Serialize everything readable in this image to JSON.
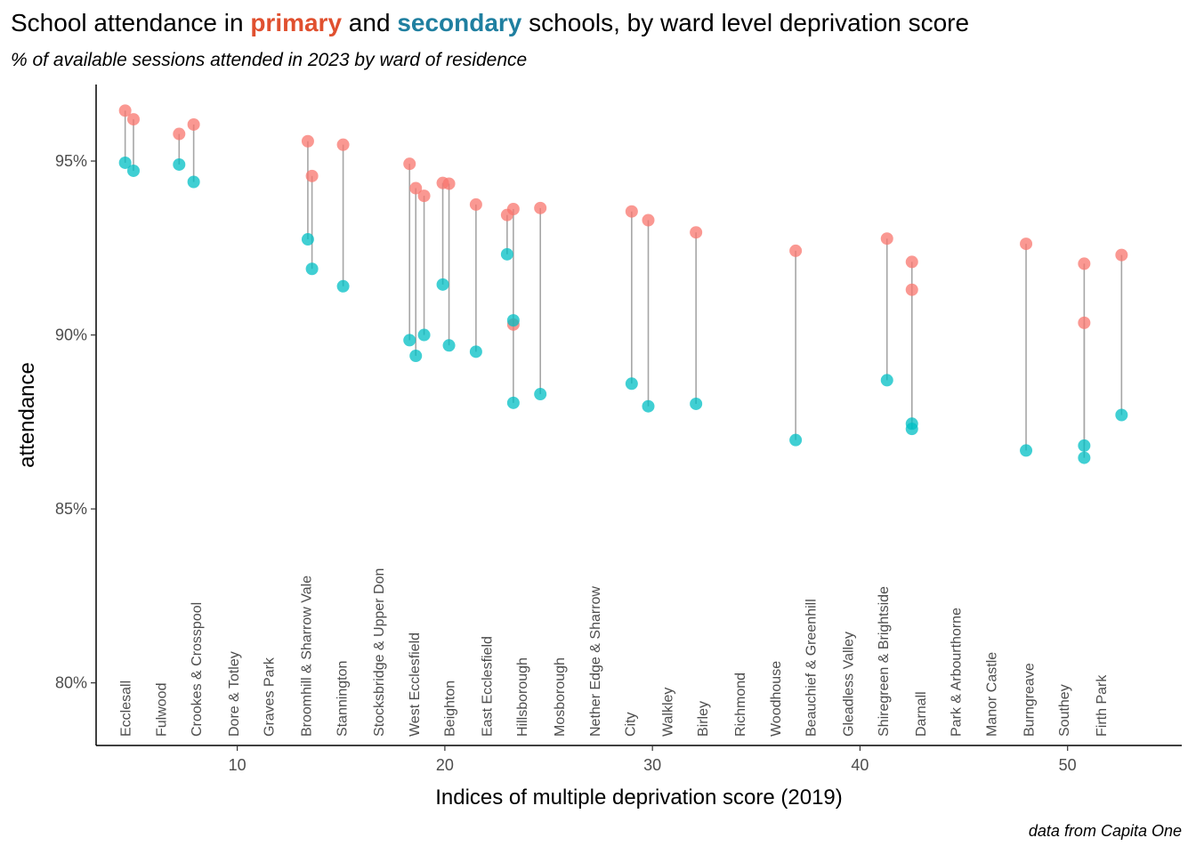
{
  "title": {
    "part1": "School attendance in ",
    "primary": "primary",
    "part2": " and ",
    "secondary": "secondary",
    "part3": " schools, by ward level deprivation score"
  },
  "subtitle": "% of available sessions attended in 2023 by ward of residence",
  "caption": "data from Capita One",
  "colors": {
    "primary": "#F8766D",
    "secondary": "#00BFC4",
    "primary_title": "#E0502F",
    "secondary_title": "#1F7FA0",
    "segment": "#A6A6A6"
  },
  "chart_data": {
    "type": "scatter",
    "xlabel": "Indices of multiple deprivation score (2019)",
    "ylabel": "attendance",
    "xlim": [
      3.2,
      55.5
    ],
    "ylim": [
      78.2,
      97.2
    ],
    "x_ticks": [
      10,
      20,
      30,
      40,
      50
    ],
    "x_tick_labels": [
      "10",
      "20",
      "30",
      "40",
      "50"
    ],
    "y_ticks": [
      80,
      85,
      90,
      95
    ],
    "y_tick_labels": [
      "80%",
      "85%",
      "90%",
      "95%"
    ],
    "grid": false,
    "legend": "none",
    "series": [
      {
        "name": "primary",
        "color": "#F8766D"
      },
      {
        "name": "secondary",
        "color": "#00BFC4"
      }
    ],
    "ward_labels": [
      {
        "name": "Ecclesall",
        "x": 4.6
      },
      {
        "name": "Fulwood",
        "x": 6.3
      },
      {
        "name": "Crookes & Crosspool",
        "x": 8.0
      },
      {
        "name": "Dore & Totley",
        "x": 9.8
      },
      {
        "name": "Graves Park",
        "x": 11.5
      },
      {
        "name": "Broomhill & Sharrow Vale",
        "x": 13.3
      },
      {
        "name": "Stannington",
        "x": 15.0
      },
      {
        "name": "Stocksbridge & Upper Don",
        "x": 16.8
      },
      {
        "name": "West Ecclesfield",
        "x": 18.5
      },
      {
        "name": "Beighton",
        "x": 20.2
      },
      {
        "name": "East Ecclesfield",
        "x": 22.0
      },
      {
        "name": "Hillsborough",
        "x": 23.7
      },
      {
        "name": "Mosborough",
        "x": 25.5
      },
      {
        "name": "Nether Edge & Sharrow",
        "x": 27.2
      },
      {
        "name": "City",
        "x": 28.9
      },
      {
        "name": "Walkley",
        "x": 30.7
      },
      {
        "name": "Birley",
        "x": 32.4
      },
      {
        "name": "Richmond",
        "x": 34.2
      },
      {
        "name": "Woodhouse",
        "x": 35.9
      },
      {
        "name": "Beauchief & Greenhill",
        "x": 37.6
      },
      {
        "name": "Gleadless Valley",
        "x": 39.4
      },
      {
        "name": "Shiregreen & Brightside",
        "x": 41.1
      },
      {
        "name": "Darnall",
        "x": 42.9
      },
      {
        "name": "Park & Arbourthorne",
        "x": 44.6
      },
      {
        "name": "Manor Castle",
        "x": 46.3
      },
      {
        "name": "Burngreave",
        "x": 48.1
      },
      {
        "name": "Southey",
        "x": 49.8
      },
      {
        "name": "Firth Park",
        "x": 51.6
      }
    ],
    "points": [
      {
        "x": 4.6,
        "primary": 96.45,
        "secondary": 94.95
      },
      {
        "x": 5.0,
        "primary": 96.2,
        "secondary": 94.72
      },
      {
        "x": 7.2,
        "primary": 95.78,
        "secondary": 94.9
      },
      {
        "x": 7.9,
        "primary": 96.05,
        "secondary": 94.4
      },
      {
        "x": 13.4,
        "primary": 95.57,
        "secondary": 92.75
      },
      {
        "x": 13.6,
        "primary": 94.57,
        "secondary": 91.9
      },
      {
        "x": 15.1,
        "primary": 95.47,
        "secondary": 91.4
      },
      {
        "x": 18.3,
        "primary": 94.92,
        "secondary": 89.85
      },
      {
        "x": 18.6,
        "primary": 94.22,
        "secondary": 89.4
      },
      {
        "x": 19.0,
        "primary": 94.0,
        "secondary": 90.0
      },
      {
        "x": 19.9,
        "primary": 94.37,
        "secondary": 91.45
      },
      {
        "x": 20.2,
        "primary": 94.35,
        "secondary": 89.7
      },
      {
        "x": 21.5,
        "primary": 93.75,
        "secondary": 89.52
      },
      {
        "x": 23.0,
        "primary": 93.45,
        "secondary": 92.32
      },
      {
        "x": 23.3,
        "primary": 93.62,
        "secondary": 88.05
      },
      {
        "x": 23.3,
        "primary": 90.3,
        "secondary": 90.42
      },
      {
        "x": 24.6,
        "primary": 93.65,
        "secondary": 88.3
      },
      {
        "x": 29.0,
        "primary": 93.55,
        "secondary": 88.6
      },
      {
        "x": 29.8,
        "primary": 93.3,
        "secondary": 87.95
      },
      {
        "x": 32.1,
        "primary": 92.95,
        "secondary": 88.02
      },
      {
        "x": 36.9,
        "primary": 92.42,
        "secondary": 86.98
      },
      {
        "x": 41.3,
        "primary": 92.77,
        "secondary": 88.7
      },
      {
        "x": 42.5,
        "primary": 92.1,
        "secondary": 87.45
      },
      {
        "x": 42.5,
        "primary": 91.3,
        "secondary": 87.3
      },
      {
        "x": 48.0,
        "primary": 92.62,
        "secondary": 86.68
      },
      {
        "x": 50.8,
        "primary": 92.05,
        "secondary": 86.82
      },
      {
        "x": 50.8,
        "primary": 90.35,
        "secondary": 86.47
      },
      {
        "x": 52.6,
        "primary": 92.3,
        "secondary": 87.7
      }
    ]
  }
}
